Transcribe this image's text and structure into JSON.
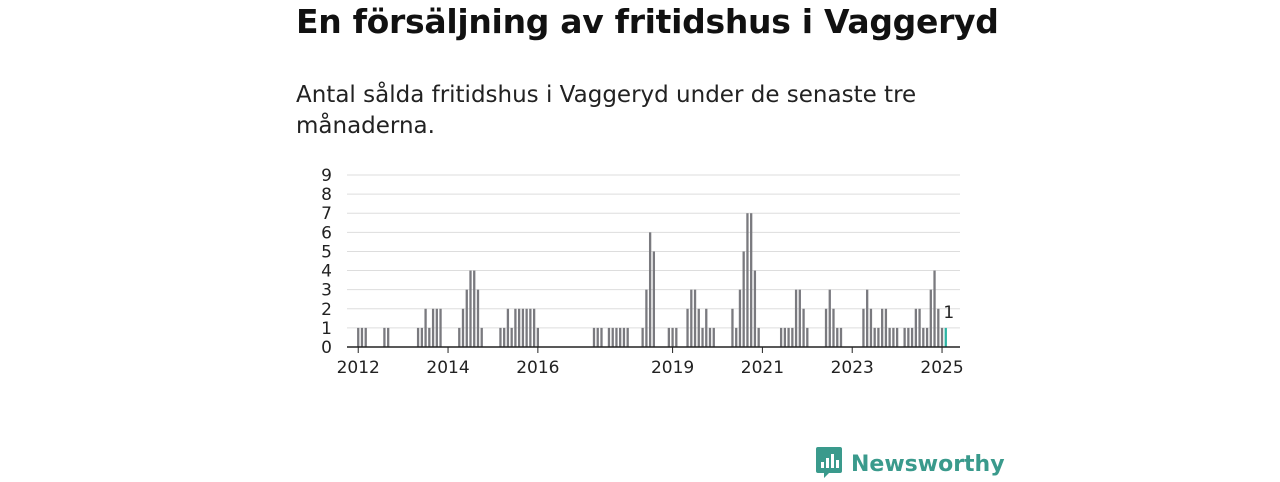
{
  "header": {
    "title": "En försäljning av fritidshus i Vaggeryd",
    "subtitle": "Antal sålda fritidshus i Vaggeryd under de senaste tre månaderna."
  },
  "brand": {
    "name": "Newsworthy",
    "color": "#3a9a8c",
    "icon": "newsworthy-logo-icon"
  },
  "colors": {
    "bar": "#7a7a7f",
    "highlight": "#2bb3a3",
    "grid": "#dddddd",
    "axis": "#222222"
  },
  "chart_data": {
    "type": "bar",
    "title": "",
    "xlabel": "",
    "ylabel": "",
    "ylim": [
      0,
      9
    ],
    "yticks": [
      0,
      1,
      2,
      3,
      4,
      5,
      6,
      7,
      8,
      9
    ],
    "xticks": [
      2012,
      2014,
      2016,
      2019,
      2021,
      2023,
      2025
    ],
    "grid": true,
    "x": [
      2012.0,
      2012.083,
      2012.167,
      2012.583,
      2012.667,
      2013.333,
      2013.417,
      2013.5,
      2013.583,
      2013.667,
      2013.75,
      2013.833,
      2014.25,
      2014.333,
      2014.417,
      2014.5,
      2014.583,
      2014.667,
      2014.75,
      2015.167,
      2015.25,
      2015.333,
      2015.417,
      2015.5,
      2015.583,
      2015.667,
      2015.75,
      2015.833,
      2015.917,
      2016.0,
      2017.25,
      2017.333,
      2017.417,
      2017.583,
      2017.667,
      2017.75,
      2017.833,
      2017.917,
      2018.0,
      2018.333,
      2018.417,
      2018.5,
      2018.583,
      2018.917,
      2019.0,
      2019.083,
      2019.333,
      2019.417,
      2019.5,
      2019.583,
      2019.667,
      2019.75,
      2019.833,
      2019.917,
      2020.333,
      2020.417,
      2020.5,
      2020.583,
      2020.667,
      2020.75,
      2020.833,
      2020.917,
      2021.417,
      2021.5,
      2021.583,
      2021.667,
      2021.75,
      2021.833,
      2021.917,
      2022.0,
      2022.417,
      2022.5,
      2022.583,
      2022.667,
      2022.75,
      2023.25,
      2023.333,
      2023.417,
      2023.5,
      2023.583,
      2023.667,
      2023.75,
      2023.833,
      2023.917,
      2024.0,
      2024.167,
      2024.25,
      2024.333,
      2024.417,
      2024.5,
      2024.583,
      2024.667,
      2024.75,
      2024.833,
      2024.917,
      2025.0,
      2025.083
    ],
    "values": [
      1,
      1,
      1,
      1,
      1,
      1,
      1,
      2,
      1,
      2,
      2,
      2,
      1,
      2,
      3,
      4,
      4,
      3,
      1,
      1,
      1,
      2,
      1,
      2,
      2,
      2,
      2,
      2,
      2,
      1,
      1,
      1,
      1,
      1,
      1,
      1,
      1,
      1,
      1,
      1,
      3,
      6,
      5,
      1,
      1,
      1,
      2,
      3,
      3,
      2,
      1,
      2,
      1,
      1,
      2,
      1,
      3,
      5,
      7,
      7,
      4,
      1,
      1,
      1,
      1,
      1,
      3,
      3,
      2,
      1,
      2,
      3,
      2,
      1,
      1,
      2,
      3,
      2,
      1,
      1,
      2,
      2,
      1,
      1,
      1,
      1,
      1,
      1,
      2,
      2,
      1,
      1,
      3,
      4,
      2,
      1,
      1
    ],
    "highlight_index": 96,
    "annotations": [
      {
        "index": 96,
        "text": "1"
      }
    ]
  }
}
